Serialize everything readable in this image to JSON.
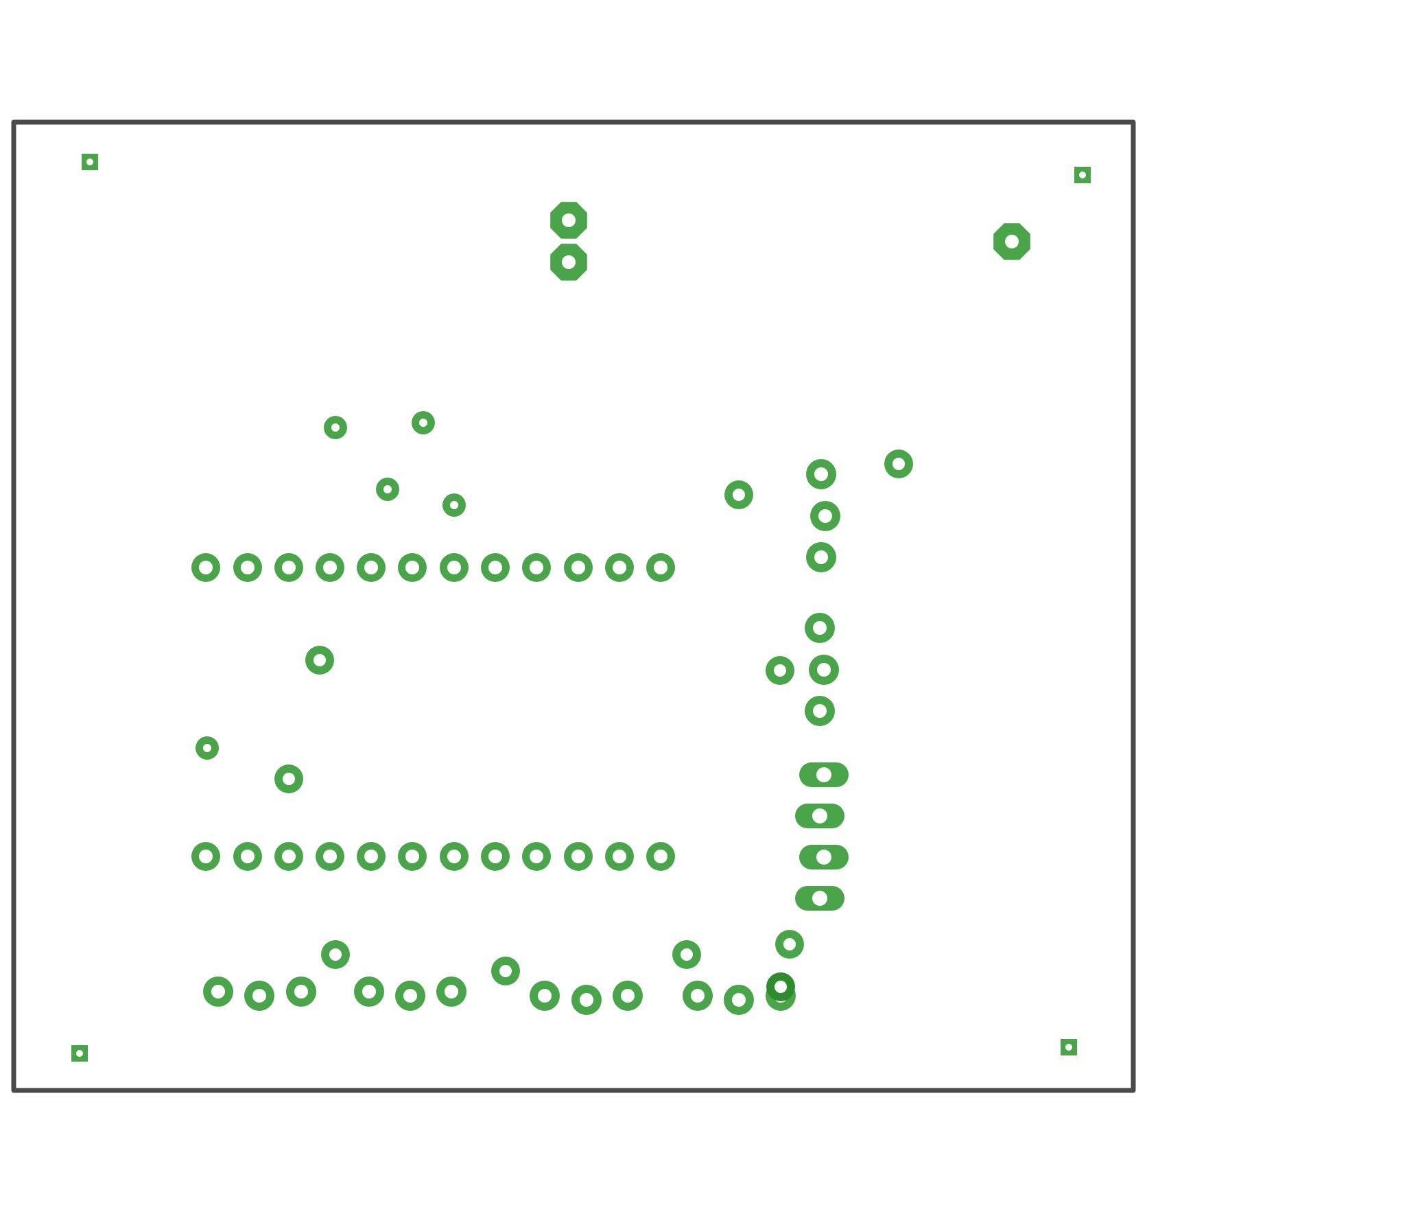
{
  "colors": {
    "background": "#ffffff",
    "outline": "#4a4a4a",
    "copper": "#4aa44a",
    "copper_dark": "#2e8b2e",
    "hole": "#ffffff"
  },
  "layer": {
    "name": "pcb-copper-layer",
    "outline_shape": "rectangle",
    "pad_count": 67
  }
}
